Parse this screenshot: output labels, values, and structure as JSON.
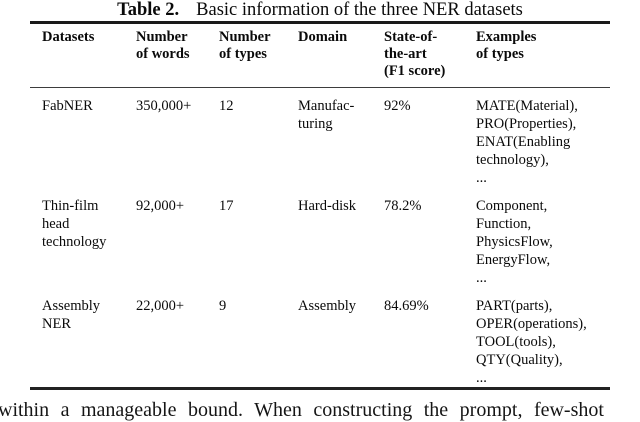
{
  "caption": {
    "label": "Table 2.",
    "text": "Basic information of the three NER datasets"
  },
  "table": {
    "headers": [
      "Datasets",
      "Number\nof words",
      "Number\nof types",
      "Domain",
      "State-of-\nthe-art\n(F1 score)",
      "Examples\nof types"
    ],
    "rows": [
      {
        "cells": [
          "FabNER",
          "350,000+",
          "12",
          "Manufac-\nturing",
          "92%",
          "MATE(Material),\nPRO(Properties),\nENAT(Enabling\ntechnology),\n..."
        ]
      },
      {
        "cells": [
          "Thin-film\nhead\ntechnology",
          "92,000+",
          "17",
          "Hard-disk",
          "78.2%",
          "Component,\nFunction,\nPhysicsFlow,\nEnergyFlow,\n..."
        ]
      },
      {
        "cells": [
          "Assembly\nNER",
          "22,000+",
          "9",
          "Assembly",
          "84.69%",
          "PART(parts),\nOPER(operations),\nTOOL(tools),\nQTY(Quality),\n..."
        ]
      }
    ]
  },
  "body_text_fragment": "within a manageable bound. When constructing the prompt, few-shot"
}
